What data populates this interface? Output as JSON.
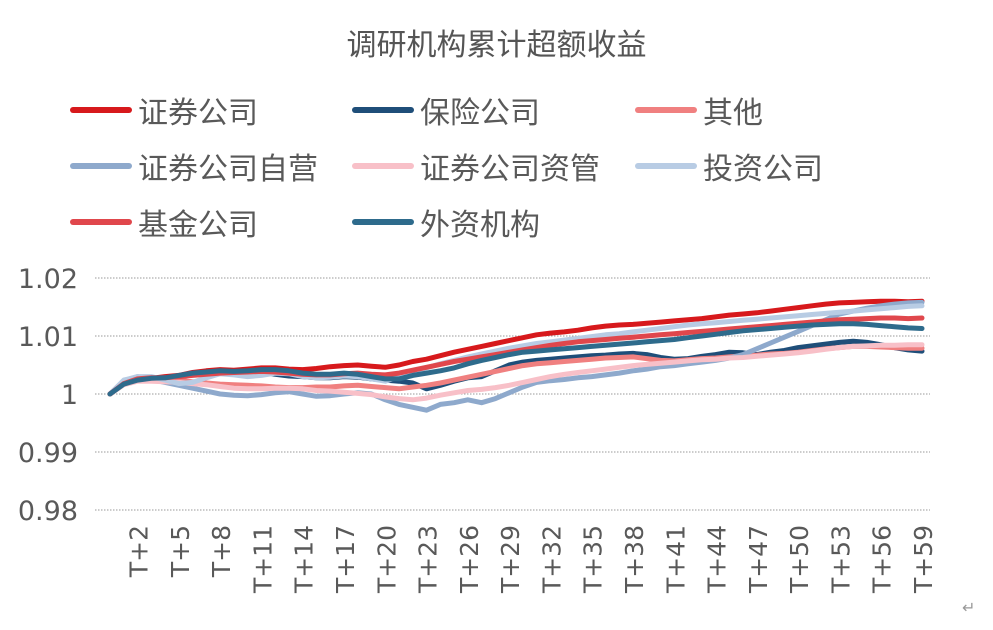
{
  "chart_data": {
    "type": "line",
    "title": "调研机构累计超额收益",
    "xlabel": "",
    "ylabel": "",
    "ylim": [
      0.98,
      1.02
    ],
    "yticks": [
      "1.02",
      "1.01",
      "1",
      "0.99",
      "0.98"
    ],
    "grid": true,
    "legend_position": "top",
    "x": [
      "T+0",
      "T+1",
      "T+2",
      "T+3",
      "T+4",
      "T+5",
      "T+6",
      "T+7",
      "T+8",
      "T+9",
      "T+10",
      "T+11",
      "T+12",
      "T+13",
      "T+14",
      "T+15",
      "T+16",
      "T+17",
      "T+18",
      "T+19",
      "T+20",
      "T+21",
      "T+22",
      "T+23",
      "T+24",
      "T+25",
      "T+26",
      "T+27",
      "T+28",
      "T+29",
      "T+30",
      "T+31",
      "T+32",
      "T+33",
      "T+34",
      "T+35",
      "T+36",
      "T+37",
      "T+38",
      "T+39",
      "T+40",
      "T+41",
      "T+42",
      "T+43",
      "T+44",
      "T+45",
      "T+46",
      "T+47",
      "T+48",
      "T+49",
      "T+50",
      "T+51",
      "T+52",
      "T+53",
      "T+54",
      "T+55",
      "T+56",
      "T+57",
      "T+58",
      "T+59"
    ],
    "xticklabels": [
      "T+2",
      "T+5",
      "T+8",
      "T+11",
      "T+14",
      "T+17",
      "T+20",
      "T+23",
      "T+26",
      "T+29",
      "T+32",
      "T+35",
      "T+38",
      "T+41",
      "T+44",
      "T+47",
      "T+50",
      "T+53",
      "T+56",
      "T+59"
    ],
    "series": [
      {
        "name": "证券公司",
        "color": "#d7191c",
        "values": [
          1.0,
          1.0018,
          1.0025,
          1.0027,
          1.003,
          1.0032,
          1.0037,
          1.004,
          1.0042,
          1.0041,
          1.0043,
          1.0045,
          1.0045,
          1.0043,
          1.0042,
          1.0044,
          1.0047,
          1.0049,
          1.005,
          1.0048,
          1.0046,
          1.005,
          1.0056,
          1.006,
          1.0066,
          1.0072,
          1.0077,
          1.0082,
          1.0087,
          1.0092,
          1.0097,
          1.0102,
          1.0105,
          1.0107,
          1.011,
          1.0114,
          1.0117,
          1.0119,
          1.012,
          1.0122,
          1.0124,
          1.0126,
          1.0128,
          1.013,
          1.0133,
          1.0136,
          1.0138,
          1.014,
          1.0143,
          1.0146,
          1.0149,
          1.0152,
          1.0155,
          1.0157,
          1.0158,
          1.0159,
          1.016,
          1.016,
          1.0159,
          1.016
        ]
      },
      {
        "name": "保险公司",
        "color": "#1f4e79",
        "values": [
          1.0,
          1.0018,
          1.0024,
          1.0026,
          1.0027,
          1.0031,
          1.0035,
          1.0036,
          1.0038,
          1.0037,
          1.0037,
          1.0038,
          1.0034,
          1.0031,
          1.003,
          1.0028,
          1.0028,
          1.003,
          1.0029,
          1.0026,
          1.0024,
          1.0022,
          1.0019,
          1.0009,
          1.0015,
          1.0022,
          1.0028,
          1.003,
          1.004,
          1.005,
          1.0055,
          1.0058,
          1.006,
          1.0062,
          1.0064,
          1.0066,
          1.0067,
          1.0069,
          1.007,
          1.0068,
          1.0063,
          1.006,
          1.0061,
          1.0065,
          1.0068,
          1.0072,
          1.0071,
          1.0068,
          1.0072,
          1.0075,
          1.008,
          1.0083,
          1.0086,
          1.0089,
          1.0091,
          1.0089,
          1.0085,
          1.008,
          1.0076,
          1.0074
        ]
      },
      {
        "name": "其他",
        "color": "#f08080",
        "values": [
          1.0,
          1.0019,
          1.0024,
          1.0027,
          1.0027,
          1.0024,
          1.0021,
          1.0019,
          1.0017,
          1.0016,
          1.0015,
          1.0014,
          1.0012,
          1.0011,
          1.0011,
          1.0012,
          1.0012,
          1.0014,
          1.0015,
          1.0013,
          1.0011,
          1.0009,
          1.0012,
          1.0015,
          1.0019,
          1.0024,
          1.0029,
          1.0034,
          1.0039,
          1.0044,
          1.0049,
          1.0052,
          1.0054,
          1.0056,
          1.0058,
          1.006,
          1.0062,
          1.0063,
          1.0064,
          1.0061,
          1.0058,
          1.0057,
          1.0059,
          1.0061,
          1.0062,
          1.0064,
          1.0066,
          1.0067,
          1.0069,
          1.007,
          1.0072,
          1.0075,
          1.0078,
          1.008,
          1.0082,
          1.0082,
          1.0081,
          1.008,
          1.0079,
          1.0079
        ]
      },
      {
        "name": "证券公司自营",
        "color": "#8ea9cc",
        "values": [
          1.0,
          1.0022,
          1.003,
          1.0025,
          1.002,
          1.0015,
          1.001,
          1.0005,
          1.0,
          0.9998,
          0.9997,
          0.9999,
          1.0002,
          1.0004,
          1.0,
          0.9996,
          0.9997,
          1.0,
          1.0002,
          1.0,
          0.999,
          0.9982,
          0.9977,
          0.9972,
          0.9982,
          0.9985,
          0.999,
          0.9985,
          0.9992,
          1.0002,
          1.0012,
          1.002,
          1.0023,
          1.0025,
          1.0028,
          1.003,
          1.0033,
          1.0036,
          1.004,
          1.0043,
          1.0047,
          1.0049,
          1.0052,
          1.0055,
          1.0058,
          1.0062,
          1.0068,
          1.0078,
          1.0088,
          1.0098,
          1.0108,
          1.0118,
          1.0128,
          1.0138,
          1.0143,
          1.0148,
          1.0152,
          1.0155,
          1.0157,
          1.0158
        ]
      },
      {
        "name": "证券公司资管",
        "color": "#f8c0c8",
        "values": [
          1.0,
          1.0016,
          1.0022,
          1.0022,
          1.0021,
          1.002,
          1.0018,
          1.0016,
          1.0013,
          1.001,
          1.0009,
          1.0009,
          1.001,
          1.001,
          1.0009,
          1.0006,
          1.0005,
          1.0003,
          1.0001,
          0.9999,
          0.9995,
          0.9992,
          0.999,
          0.9993,
          0.9998,
          1.0002,
          1.0006,
          1.0008,
          1.0011,
          1.0015,
          1.002,
          1.0025,
          1.003,
          1.0034,
          1.0037,
          1.004,
          1.0043,
          1.0046,
          1.0049,
          1.0051,
          1.0053,
          1.0055,
          1.0057,
          1.0059,
          1.006,
          1.0062,
          1.0063,
          1.0065,
          1.0067,
          1.0069,
          1.0071,
          1.0074,
          1.0077,
          1.008,
          1.0082,
          1.0083,
          1.0084,
          1.0084,
          1.0085,
          1.0085
        ]
      },
      {
        "name": "投资公司",
        "color": "#b8cce4",
        "values": [
          1.0,
          1.0024,
          1.003,
          1.003,
          1.0024,
          1.0018,
          1.002,
          1.0028,
          1.0035,
          1.0033,
          1.003,
          1.0032,
          1.0036,
          1.0035,
          1.003,
          1.0028,
          1.0029,
          1.0031,
          1.003,
          1.0026,
          1.0022,
          1.003,
          1.0038,
          1.0045,
          1.0052,
          1.0058,
          1.0064,
          1.0069,
          1.0074,
          1.0079,
          1.0083,
          1.0087,
          1.009,
          1.0093,
          1.0096,
          1.0099,
          1.0102,
          1.0104,
          1.0107,
          1.011,
          1.0113,
          1.0116,
          1.0119,
          1.0121,
          1.0123,
          1.0125,
          1.0127,
          1.0129,
          1.0131,
          1.0133,
          1.0135,
          1.0137,
          1.0139,
          1.0141,
          1.0143,
          1.0145,
          1.0147,
          1.0149,
          1.0151,
          1.0152
        ]
      },
      {
        "name": "基金公司",
        "color": "#e0474c",
        "values": [
          1.0,
          1.0018,
          1.0026,
          1.0028,
          1.0028,
          1.003,
          1.0032,
          1.0034,
          1.0036,
          1.0037,
          1.0038,
          1.0039,
          1.0038,
          1.0036,
          1.0034,
          1.0033,
          1.0033,
          1.0035,
          1.0036,
          1.0034,
          1.0033,
          1.0036,
          1.0041,
          1.0046,
          1.0051,
          1.0056,
          1.006,
          1.0064,
          1.0068,
          1.0072,
          1.0076,
          1.008,
          1.0084,
          1.0087,
          1.009,
          1.0092,
          1.0094,
          1.0096,
          1.0098,
          1.01,
          1.0102,
          1.0104,
          1.0106,
          1.0108,
          1.011,
          1.0112,
          1.0114,
          1.0116,
          1.0118,
          1.012,
          1.0122,
          1.0124,
          1.0126,
          1.0128,
          1.0129,
          1.013,
          1.0131,
          1.0131,
          1.013,
          1.0131
        ]
      },
      {
        "name": "外资机构",
        "color": "#2e6b8c",
        "values": [
          1.0,
          1.0017,
          1.0024,
          1.0027,
          1.0028,
          1.0032,
          1.0036,
          1.0038,
          1.004,
          1.0039,
          1.004,
          1.0042,
          1.0042,
          1.004,
          1.0036,
          1.0034,
          1.0034,
          1.0036,
          1.0034,
          1.003,
          1.0026,
          1.0026,
          1.0032,
          1.0036,
          1.004,
          1.0045,
          1.0052,
          1.0058,
          1.0063,
          1.0068,
          1.0072,
          1.0074,
          1.0076,
          1.0078,
          1.008,
          1.0082,
          1.0084,
          1.0086,
          1.0088,
          1.009,
          1.0092,
          1.0094,
          1.0097,
          1.01,
          1.0103,
          1.0106,
          1.0109,
          1.0111,
          1.0113,
          1.0115,
          1.0117,
          1.0119,
          1.012,
          1.0121,
          1.0121,
          1.012,
          1.0118,
          1.0116,
          1.0114,
          1.0113
        ]
      }
    ]
  },
  "decor": {
    "return_mark": "↵"
  }
}
